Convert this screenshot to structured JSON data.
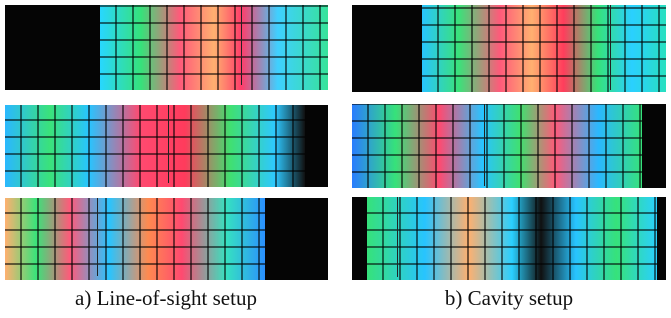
{
  "panels": [
    {
      "caption": "a) Line-of-sight setup"
    },
    {
      "caption": "b) Cavity setup"
    }
  ]
}
